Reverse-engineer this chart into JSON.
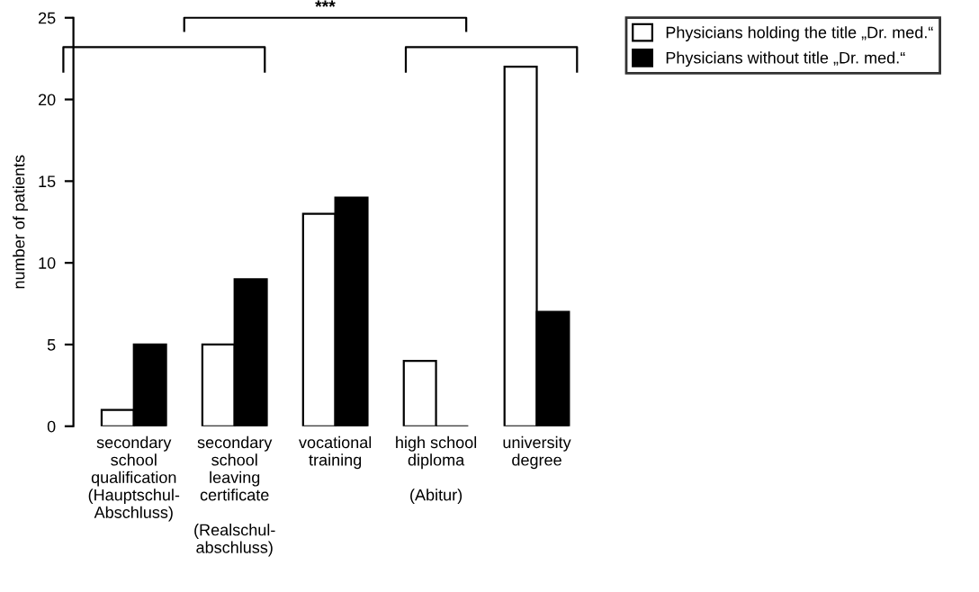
{
  "chart_data": {
    "type": "bar",
    "ylabel": "number of patients",
    "categories": [
      "secondary\nschool\nqualification\n(Hauptschul-\nAbschluss)",
      "secondary\nschool\nleaving\ncertificate\n\n(Realschul-\nabschluss)",
      "vocational\ntraining",
      "high school\ndiploma\n\n(Abitur)",
      "university\ndegree"
    ],
    "series": [
      {
        "name": "Physicians holding the title „Dr. med.“",
        "color": "#ffffff",
        "values": [
          1,
          5,
          13,
          4,
          22
        ]
      },
      {
        "name": "Physicians without title „Dr. med.“",
        "color": "#000000",
        "values": [
          5,
          9,
          14,
          0,
          7
        ]
      }
    ],
    "ylim": [
      0,
      25
    ],
    "yticks": [
      0,
      5,
      10,
      15,
      20,
      25
    ],
    "grid": false,
    "legend": "top right",
    "annotations": [
      "***"
    ]
  }
}
